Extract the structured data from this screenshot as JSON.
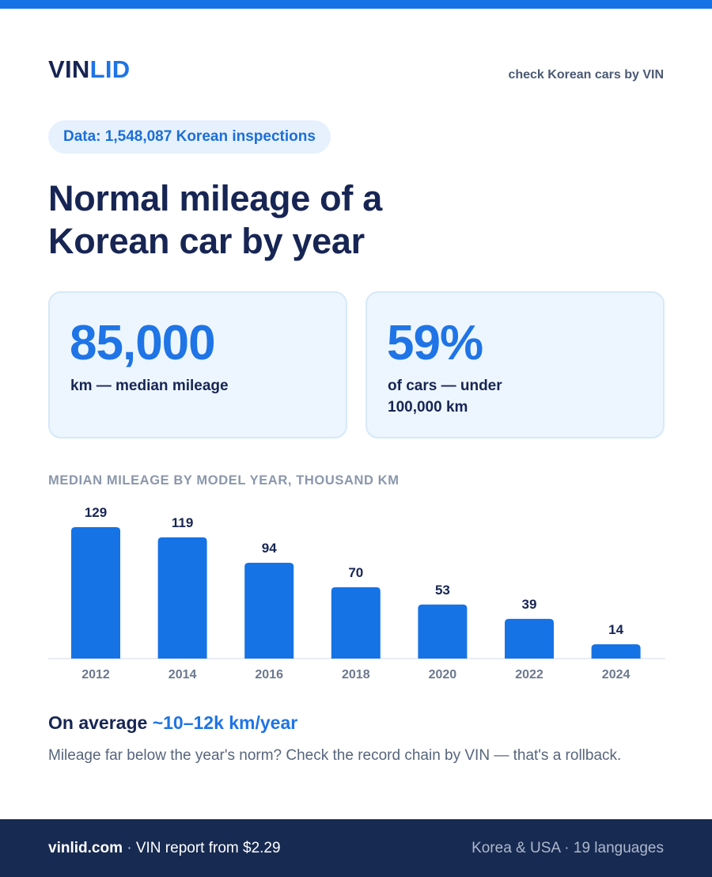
{
  "brand": {
    "logo_part1": "VIN",
    "logo_part2": "LID",
    "tagline": "check Korean cars by VIN"
  },
  "data_pill": "Data: 1,548,087 Korean inspections",
  "headline": "Normal mileage of a Korean car by year",
  "stats": [
    {
      "value": "85,000",
      "label": "km — median mileage"
    },
    {
      "value": "59%",
      "label": "of cars — under 100,000 km"
    }
  ],
  "chart_data": {
    "type": "bar",
    "title": "MEDIAN MILEAGE BY MODEL YEAR, THOUSAND KM",
    "categories": [
      "2012",
      "2014",
      "2016",
      "2018",
      "2020",
      "2022",
      "2024"
    ],
    "values": [
      129,
      119,
      94,
      70,
      53,
      39,
      14
    ],
    "xlabel": "",
    "ylabel": "",
    "ylim": [
      0,
      129
    ],
    "grid": false,
    "data_labels": true,
    "bar_color": "#1573e6"
  },
  "summary": {
    "prefix": "On average ",
    "highlight": "~10–12k km/year",
    "note": "Mileage far below the year's norm? Check the record chain by VIN — that's a rollback."
  },
  "footer": {
    "site": "vinlid.com",
    "separator": " · ",
    "offer": "VIN report from $2.29",
    "right": "Korea & USA · 19 languages"
  },
  "colors": {
    "accent": "#1f74e6",
    "navy": "#172554",
    "footer_bg": "#172a52"
  }
}
